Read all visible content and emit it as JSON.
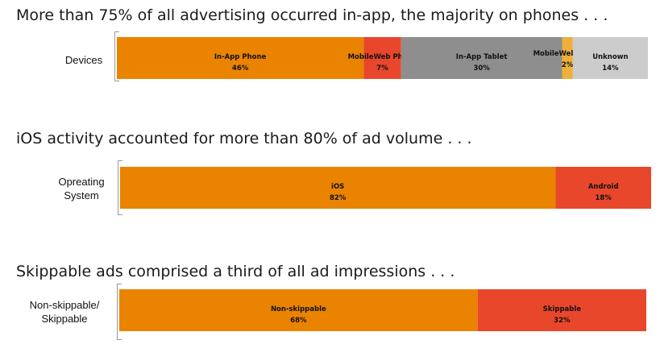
{
  "colors": {
    "orange": "#EA8300",
    "red": "#E8472C",
    "gray": "#8E8E8E",
    "gold": "#EEB03A",
    "lightgray": "#CCCCCC"
  },
  "chart_data": [
    {
      "type": "bar",
      "orientation": "horizontal-stacked",
      "title": "More than 75% of all advertising occurred in-app, the majority on phones . . .",
      "row_label": "Devices",
      "unit": "%",
      "series": [
        {
          "name": "In-App Phone",
          "value": 46,
          "display": "46%",
          "color": "#EA8300"
        },
        {
          "name": "MobileWeb Phone",
          "value": 7,
          "display": "7%",
          "color": "#E8472C"
        },
        {
          "name": "In-App Tablet",
          "value": 30,
          "display": "30%",
          "color": "#8E8E8E"
        },
        {
          "name": "MobileWeb Tablet",
          "value": 2,
          "display": "2%",
          "color": "#EEB03A"
        },
        {
          "name": "Unknown",
          "value": 14,
          "display": "14%",
          "color": "#CCCCCC"
        }
      ]
    },
    {
      "type": "bar",
      "orientation": "horizontal-stacked",
      "title": "iOS activity accounted for more than 80% of ad volume . . .",
      "row_label": "Opreating System",
      "unit": "%",
      "series": [
        {
          "name": "iOS",
          "value": 82,
          "display": "82%",
          "color": "#EA8300"
        },
        {
          "name": "Android",
          "value": 18,
          "display": "18%",
          "color": "#E8472C"
        }
      ]
    },
    {
      "type": "bar",
      "orientation": "horizontal-stacked",
      "title": "Skippable ads comprised a third of all ad impressions . . .",
      "row_label": "Non-skippable/ Skippable",
      "unit": "%",
      "series": [
        {
          "name": "Non-skippable",
          "value": 68,
          "display": "68%",
          "color": "#EA8300"
        },
        {
          "name": "Skippable",
          "value": 32,
          "display": "32%",
          "color": "#E8472C"
        }
      ]
    }
  ]
}
